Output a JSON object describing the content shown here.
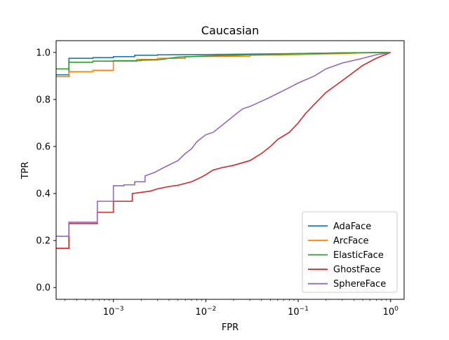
{
  "chart_data": {
    "type": "line",
    "title": "Caucasian",
    "xlabel": "FPR",
    "ylabel": "TPR",
    "xscale": "log",
    "xlim": [
      0.00024,
      1.4
    ],
    "ylim": [
      -0.05,
      1.05
    ],
    "x_ticks": [
      {
        "value": 0.001,
        "base": "10",
        "exp": "−3"
      },
      {
        "value": 0.01,
        "base": "10",
        "exp": "−2"
      },
      {
        "value": 0.1,
        "base": "10",
        "exp": "−1"
      },
      {
        "value": 1,
        "base": "10",
        "exp": "0"
      }
    ],
    "y_ticks": [
      {
        "value": 0.0,
        "label": "0.0"
      },
      {
        "value": 0.2,
        "label": "0.2"
      },
      {
        "value": 0.4,
        "label": "0.4"
      },
      {
        "value": 0.6,
        "label": "0.6"
      },
      {
        "value": 0.8,
        "label": "0.8"
      },
      {
        "value": 1.0,
        "label": "1.0"
      }
    ],
    "legend_position": "lower right",
    "series": [
      {
        "name": "AdaFace",
        "color": "#1f77b4",
        "points": [
          [
            0.00024,
            0.905
          ],
          [
            0.00033,
            0.905
          ],
          [
            0.00033,
            0.975
          ],
          [
            0.0006,
            0.975
          ],
          [
            0.0006,
            0.978
          ],
          [
            0.001,
            0.978
          ],
          [
            0.001,
            0.982
          ],
          [
            0.0017,
            0.982
          ],
          [
            0.0017,
            0.988
          ],
          [
            0.003,
            0.988
          ],
          [
            0.003,
            0.99
          ],
          [
            0.01,
            0.991
          ],
          [
            0.03,
            0.993
          ],
          [
            0.1,
            0.995
          ],
          [
            0.3,
            0.998
          ],
          [
            1.0,
            1.0
          ]
        ]
      },
      {
        "name": "ArcFace",
        "color": "#ff7f0e",
        "points": [
          [
            0.00024,
            0.897
          ],
          [
            0.00033,
            0.897
          ],
          [
            0.00033,
            0.918
          ],
          [
            0.0006,
            0.918
          ],
          [
            0.0006,
            0.924
          ],
          [
            0.001,
            0.924
          ],
          [
            0.001,
            0.963
          ],
          [
            0.0018,
            0.963
          ],
          [
            0.0018,
            0.97
          ],
          [
            0.003,
            0.97
          ],
          [
            0.003,
            0.975
          ],
          [
            0.006,
            0.975
          ],
          [
            0.006,
            0.982
          ],
          [
            0.03,
            0.984
          ],
          [
            0.03,
            0.988
          ],
          [
            0.1,
            0.991
          ],
          [
            0.3,
            0.995
          ],
          [
            0.5,
            0.998
          ],
          [
            1.0,
            1.0
          ]
        ]
      },
      {
        "name": "ElasticFace",
        "color": "#2ca02c",
        "points": [
          [
            0.00024,
            0.93
          ],
          [
            0.00033,
            0.93
          ],
          [
            0.00033,
            0.958
          ],
          [
            0.0006,
            0.958
          ],
          [
            0.0006,
            0.963
          ],
          [
            0.001,
            0.963
          ],
          [
            0.001,
            0.965
          ],
          [
            0.002,
            0.965
          ],
          [
            0.002,
            0.967
          ],
          [
            0.003,
            0.968
          ],
          [
            0.005,
            0.98
          ],
          [
            0.01,
            0.985
          ],
          [
            0.03,
            0.99
          ],
          [
            0.1,
            0.995
          ],
          [
            0.3,
            0.998
          ],
          [
            1.0,
            1.0
          ]
        ]
      },
      {
        "name": "GhostFace",
        "color": "#d62728",
        "points": [
          [
            0.00024,
            0.167
          ],
          [
            0.00033,
            0.167
          ],
          [
            0.00033,
            0.272
          ],
          [
            0.00067,
            0.272
          ],
          [
            0.00067,
            0.32
          ],
          [
            0.001,
            0.32
          ],
          [
            0.001,
            0.367
          ],
          [
            0.0016,
            0.367
          ],
          [
            0.0016,
            0.4
          ],
          [
            0.0025,
            0.41
          ],
          [
            0.003,
            0.42
          ],
          [
            0.004,
            0.43
          ],
          [
            0.005,
            0.435
          ],
          [
            0.007,
            0.45
          ],
          [
            0.009,
            0.47
          ],
          [
            0.01,
            0.48
          ],
          [
            0.012,
            0.5
          ],
          [
            0.015,
            0.51
          ],
          [
            0.02,
            0.52
          ],
          [
            0.03,
            0.54
          ],
          [
            0.04,
            0.57
          ],
          [
            0.05,
            0.6
          ],
          [
            0.06,
            0.63
          ],
          [
            0.08,
            0.66
          ],
          [
            0.1,
            0.7
          ],
          [
            0.12,
            0.74
          ],
          [
            0.15,
            0.78
          ],
          [
            0.2,
            0.83
          ],
          [
            0.3,
            0.88
          ],
          [
            0.5,
            0.945
          ],
          [
            0.7,
            0.975
          ],
          [
            1.0,
            1.0
          ]
        ]
      },
      {
        "name": "SphereFace",
        "color": "#9467bd",
        "points": [
          [
            0.00024,
            0.218
          ],
          [
            0.00033,
            0.218
          ],
          [
            0.00033,
            0.278
          ],
          [
            0.00067,
            0.278
          ],
          [
            0.00067,
            0.367
          ],
          [
            0.001,
            0.367
          ],
          [
            0.001,
            0.433
          ],
          [
            0.0013,
            0.433
          ],
          [
            0.0013,
            0.437
          ],
          [
            0.0017,
            0.437
          ],
          [
            0.0017,
            0.45
          ],
          [
            0.0022,
            0.45
          ],
          [
            0.0022,
            0.475
          ],
          [
            0.0028,
            0.49
          ],
          [
            0.0035,
            0.51
          ],
          [
            0.005,
            0.54
          ],
          [
            0.006,
            0.57
          ],
          [
            0.007,
            0.59
          ],
          [
            0.008,
            0.62
          ],
          [
            0.01,
            0.65
          ],
          [
            0.012,
            0.66
          ],
          [
            0.015,
            0.69
          ],
          [
            0.02,
            0.73
          ],
          [
            0.025,
            0.76
          ],
          [
            0.03,
            0.77
          ],
          [
            0.05,
            0.81
          ],
          [
            0.08,
            0.85
          ],
          [
            0.1,
            0.87
          ],
          [
            0.15,
            0.9
          ],
          [
            0.2,
            0.93
          ],
          [
            0.3,
            0.955
          ],
          [
            0.5,
            0.975
          ],
          [
            0.7,
            0.99
          ],
          [
            1.0,
            1.0
          ]
        ]
      }
    ]
  }
}
